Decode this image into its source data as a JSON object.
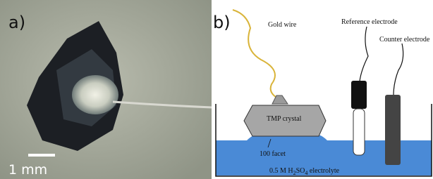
{
  "panel_a": {
    "label": "a)",
    "scale_bar": "1 mm"
  },
  "panel_b": {
    "label": "b)",
    "gold_wire": "Gold wire",
    "reference_electrode": "Reference electrode",
    "counter_electrode": "Counter electrode",
    "crystal": "TMP crystal",
    "facet": "100 facet",
    "electrolyte": {
      "parts": [
        "0.5 M H",
        "2",
        "SO",
        "4",
        " electrolyte"
      ]
    }
  }
}
